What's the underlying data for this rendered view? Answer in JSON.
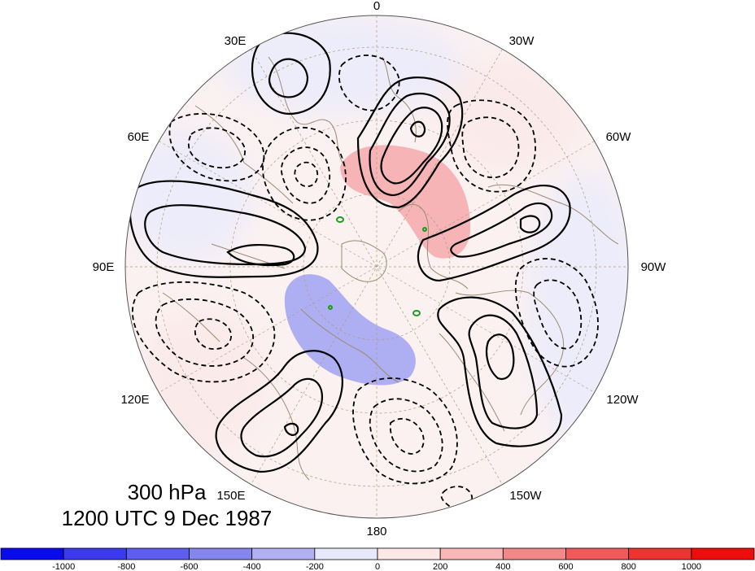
{
  "map": {
    "projection": "north-polar-stereographic",
    "longitude_labels": {
      "top": "0",
      "top_left": "30E",
      "top_right": "30W",
      "upper_left": "60E",
      "upper_right": "60W",
      "left": "90E",
      "right": "90W",
      "lower_left": "120E",
      "lower_right": "120W",
      "bottom_left": "150E",
      "bottom_right": "150W",
      "bottom": "180"
    },
    "colors": {
      "positive_fill": "#f4a6aa",
      "negative_fill": "#a9a9f2",
      "weak_positive": "#fdeeed",
      "weak_negative": "#eeeefb",
      "coastline": "#9c8a70",
      "grid": "#b09a7a",
      "contour": "#000000"
    }
  },
  "caption": {
    "level": "300 hPa",
    "time": "1200 UTC 9 Dec 1987"
  },
  "colorbar": {
    "labels": [
      "-1000",
      "-800",
      "-600",
      "-400",
      "-200",
      "0",
      "200",
      "400",
      "600",
      "800",
      "1000"
    ],
    "colors": [
      "#0a0af0",
      "#3a3aee",
      "#5d5dee",
      "#8585ee",
      "#b0b0f3",
      "#e8e8fb",
      "#fde8e6",
      "#f8b8b8",
      "#f38888",
      "#f05a5a",
      "#ee3333",
      "#f00c0c"
    ]
  }
}
